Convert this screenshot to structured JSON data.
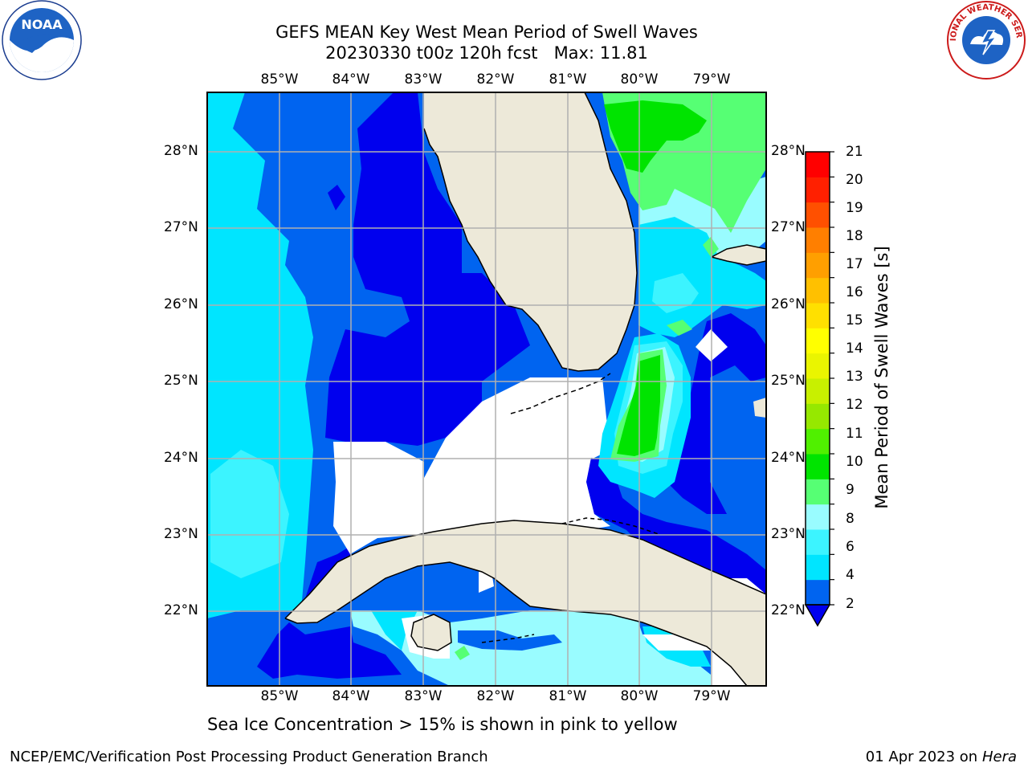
{
  "title": {
    "line1": "GEFS MEAN Key West Mean Period of Swell Waves",
    "line2": "20230330 t00z 120h fcst   Max: 11.81"
  },
  "map": {
    "lon_labels": [
      "85°W",
      "84°W",
      "83°W",
      "82°W",
      "81°W",
      "80°W",
      "79°W"
    ],
    "lat_labels": [
      "28°N",
      "27°N",
      "26°N",
      "25°N",
      "24°N",
      "23°N",
      "22°N"
    ],
    "colors": {
      "land": "#ede9d9",
      "c2": "#0000ee",
      "c4": "#0064f0",
      "c6": "#00e5ff",
      "c8": "#3cf4ff",
      "c9": "#99fcff",
      "c10": "#56ff74",
      "c11": "#00e400"
    }
  },
  "colorbar": {
    "title": "Mean Period of Swell Waves [s]",
    "ticks": [
      "21",
      "20",
      "19",
      "18",
      "17",
      "16",
      "15",
      "14",
      "13",
      "12",
      "11",
      "10",
      "9",
      "8",
      "6",
      "4",
      "2"
    ],
    "colors": [
      "#0064f0",
      "#00e5ff",
      "#3cf4ff",
      "#99fcff",
      "#56ff74",
      "#00e400",
      "#50f000",
      "#96e800",
      "#c8f000",
      "#eaf500",
      "#ffff00",
      "#ffe000",
      "#ffc000",
      "#ff9f00",
      "#ff7f00",
      "#ff5000",
      "#ff2000",
      "#ff0000"
    ]
  },
  "note": "Sea Ice Concentration > 15% is shown in pink to yellow",
  "footer": {
    "left": "NCEP/EMC/Verification Post Processing Product Generation Branch",
    "date": "01 Apr 2023 on ",
    "machine": "Hera"
  },
  "logos": {
    "noaa_text": "NOAA",
    "nws_text": "NATIONAL WEATHER SERVICE"
  }
}
